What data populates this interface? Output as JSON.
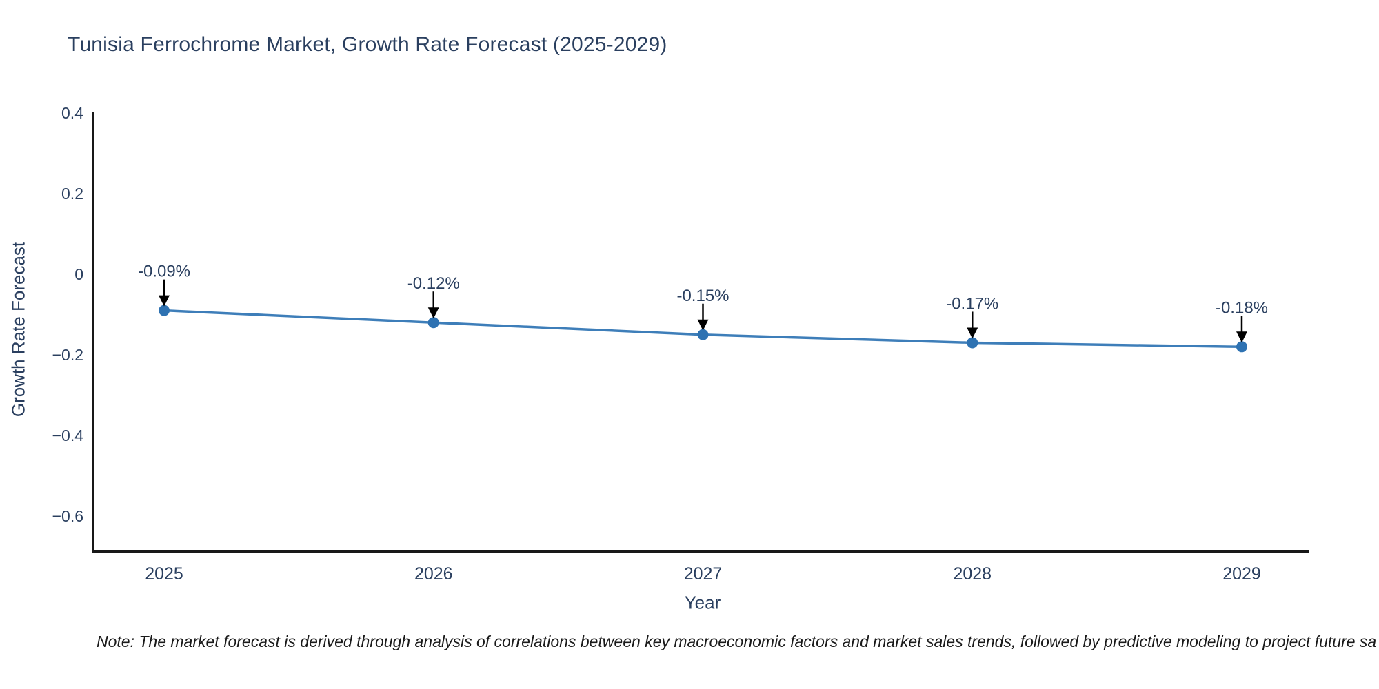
{
  "chart": {
    "title": "Tunisia Ferrochrome Market, Growth Rate Forecast (2025-2029)"
  },
  "chart_data": {
    "type": "line",
    "title": "Tunisia Ferrochrome Market, Growth Rate Forecast (2025-2029)",
    "x": [
      2025,
      2026,
      2027,
      2028,
      2029
    ],
    "values": [
      -0.09,
      -0.12,
      -0.15,
      -0.17,
      -0.18
    ],
    "point_labels": [
      "-0.09%",
      "-0.12%",
      "-0.15%",
      "-0.17%",
      "-0.18%"
    ],
    "xticks": [
      "2025",
      "2026",
      "2027",
      "2028",
      "2029"
    ],
    "yticks": [
      {
        "value": 0.4,
        "label": "0.4"
      },
      {
        "value": 0.2,
        "label": "0.2"
      },
      {
        "value": 0,
        "label": "0"
      },
      {
        "value": -0.2,
        "label": "−0.2"
      },
      {
        "value": -0.4,
        "label": "−0.4"
      },
      {
        "value": -0.6,
        "label": "−0.6"
      }
    ],
    "xlabel": "Year",
    "ylabel": "Growth Rate Forecast",
    "ylim": [
      -0.69,
      0.4
    ],
    "grid": false,
    "legend": "none",
    "marker_shape": "circle",
    "annotation_style": "label-with-down-arrow",
    "colors": {
      "line": "#3e7eb9",
      "marker": "#2e72b2",
      "axis": "#181818",
      "text": "#2a3f5f",
      "arrow": "#000000"
    }
  },
  "note": "Note: The market forecast is derived through analysis of correlations between key macroeconomic factors and market sales trends, followed by predictive modeling to project future sa"
}
